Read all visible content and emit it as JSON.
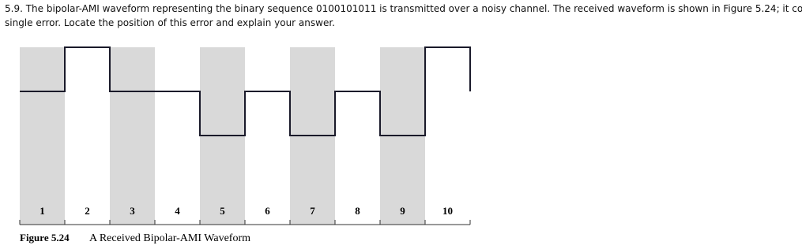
{
  "question": {
    "lines": [
      "5.9. The bipolar-AMI waveform representing the binary sequence 0100101011 is transmitted over a noisy channel. The received waveform is shown in Figure 5.24; it contains a",
      "single error. Locate the position of this error and explain your answer."
    ]
  },
  "figure": {
    "bit_labels": [
      "1",
      "2",
      "3",
      "4",
      "5",
      "6",
      "7",
      "8",
      "9",
      "10"
    ],
    "caption_number": "Figure 5.24",
    "caption_text": "A Received Bipolar-AMI Waveform"
  }
}
